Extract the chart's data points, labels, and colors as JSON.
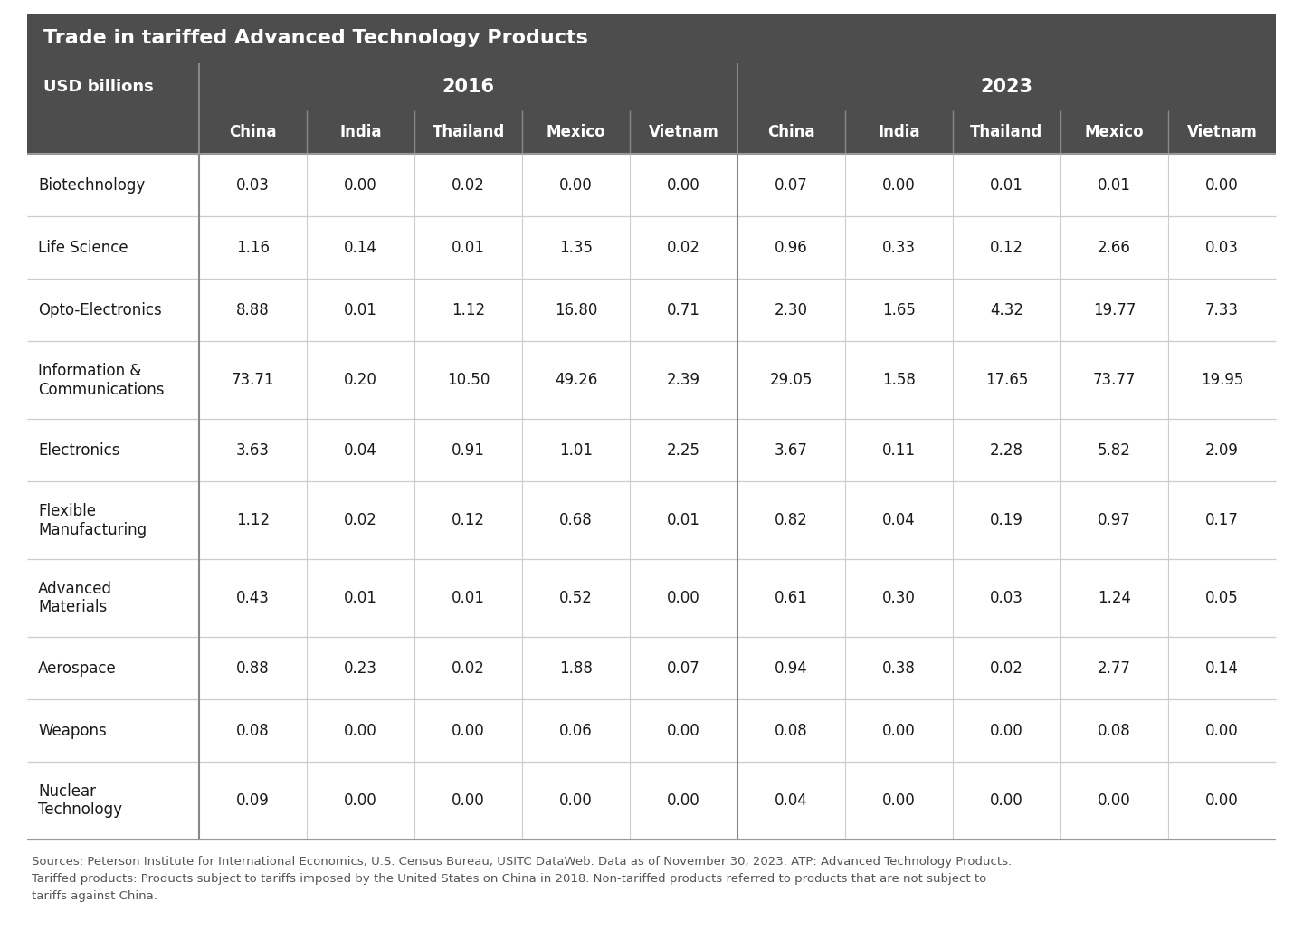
{
  "title": "Trade in tariffed Advanced Technology Products",
  "subtitle": "USD billions",
  "footer_line1": "Sources: Peterson Institute for International Economics, U.S. Census Bureau, USITC DataWeb. Data as of November 30, 2023. ATP: Advanced Technology Products.",
  "footer_line2": "Tariffed products: Products subject to tariffs imposed by the United States on China in 2018. Non-tariffed products referred to products that are not subject to",
  "footer_line3": "tariffs against China.",
  "year_groups": [
    "2016",
    "2023"
  ],
  "countries": [
    "China",
    "India",
    "Thailand",
    "Mexico",
    "Vietnam"
  ],
  "categories": [
    "Biotechnology",
    "Life Science",
    "Opto-Electronics",
    "Information &\nCommunications",
    "Electronics",
    "Flexible\nManufacturing",
    "Advanced\nMaterials",
    "Aerospace",
    "Weapons",
    "Nuclear\nTechnology"
  ],
  "data_2016": [
    [
      0.03,
      0.0,
      0.02,
      0.0,
      0.0
    ],
    [
      1.16,
      0.14,
      0.01,
      1.35,
      0.02
    ],
    [
      8.88,
      0.01,
      1.12,
      16.8,
      0.71
    ],
    [
      73.71,
      0.2,
      10.5,
      49.26,
      2.39
    ],
    [
      3.63,
      0.04,
      0.91,
      1.01,
      2.25
    ],
    [
      1.12,
      0.02,
      0.12,
      0.68,
      0.01
    ],
    [
      0.43,
      0.01,
      0.01,
      0.52,
      0.0
    ],
    [
      0.88,
      0.23,
      0.02,
      1.88,
      0.07
    ],
    [
      0.08,
      0.0,
      0.0,
      0.06,
      0.0
    ],
    [
      0.09,
      0.0,
      0.0,
      0.0,
      0.0
    ]
  ],
  "data_2023": [
    [
      0.07,
      0.0,
      0.01,
      0.01,
      0.0
    ],
    [
      0.96,
      0.33,
      0.12,
      2.66,
      0.03
    ],
    [
      2.3,
      1.65,
      4.32,
      19.77,
      7.33
    ],
    [
      29.05,
      1.58,
      17.65,
      73.77,
      19.95
    ],
    [
      3.67,
      0.11,
      2.28,
      5.82,
      2.09
    ],
    [
      0.82,
      0.04,
      0.19,
      0.97,
      0.17
    ],
    [
      0.61,
      0.3,
      0.03,
      1.24,
      0.05
    ],
    [
      0.94,
      0.38,
      0.02,
      2.77,
      0.14
    ],
    [
      0.08,
      0.0,
      0.0,
      0.08,
      0.0
    ],
    [
      0.04,
      0.0,
      0.0,
      0.0,
      0.0
    ]
  ],
  "header_bg": "#4d4d4d",
  "header_fg": "#ffffff",
  "divider_dark": "#999999",
  "divider_light": "#cccccc",
  "body_bg": "#ffffff",
  "body_fg": "#1a1a1a",
  "footer_fg": "#555555",
  "outer_bg": "#ffffff"
}
